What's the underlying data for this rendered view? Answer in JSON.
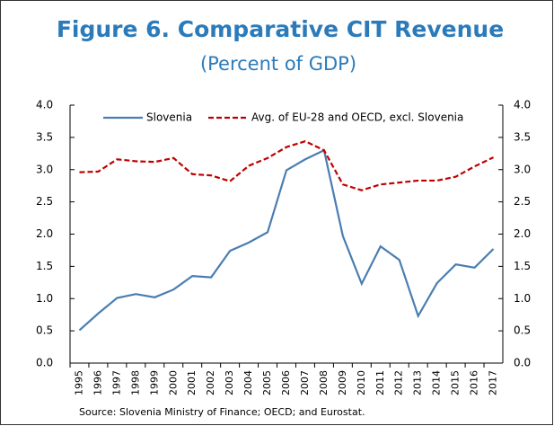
{
  "chart_data": {
    "type": "line",
    "title": "Figure 6. Comparative CIT Revenue",
    "subtitle": "(Percent of GDP)",
    "source": "Source: Slovenia Ministry of Finance; OECD; and Eurostat.",
    "categories": [
      "1995",
      "1996",
      "1997",
      "1998",
      "1999",
      "2000",
      "2001",
      "2002",
      "2003",
      "2004",
      "2005",
      "2006",
      "2007",
      "2008",
      "2009",
      "2010",
      "2011",
      "2012",
      "2013",
      "2014",
      "2015",
      "2016",
      "2017"
    ],
    "series": [
      {
        "name": "Slovenia",
        "color": "#4a7eb0",
        "dashed": false,
        "values": [
          0.51,
          0.77,
          1.01,
          1.07,
          1.02,
          1.14,
          1.35,
          1.33,
          1.74,
          1.87,
          2.03,
          2.99,
          3.16,
          3.3,
          1.97,
          1.23,
          1.81,
          1.6,
          0.73,
          1.24,
          1.53,
          1.48,
          1.77
        ]
      },
      {
        "name": "Avg. of EU-28 and OECD, excl. Slovenia",
        "color": "#c00000",
        "dashed": true,
        "values": [
          2.96,
          2.97,
          3.16,
          3.13,
          3.12,
          3.18,
          2.93,
          2.91,
          2.82,
          3.06,
          3.18,
          3.35,
          3.44,
          3.3,
          2.77,
          2.68,
          2.77,
          2.8,
          2.83,
          2.83,
          2.89,
          3.05,
          3.19
        ]
      }
    ],
    "ylim": [
      0,
      4
    ],
    "yticks": [
      {
        "value": 0,
        "label": "0.0"
      },
      {
        "value": 0.5,
        "label": "0.5"
      },
      {
        "value": 1,
        "label": "1.0"
      },
      {
        "value": 1.5,
        "label": "1.5"
      },
      {
        "value": 2,
        "label": "2.0"
      },
      {
        "value": 2.5,
        "label": "2.5"
      },
      {
        "value": 3,
        "label": "3.0"
      },
      {
        "value": 3.5,
        "label": "3.5"
      },
      {
        "value": 4,
        "label": "4.0"
      }
    ],
    "y2lim": [
      0,
      4
    ],
    "y2ticks": [
      {
        "value": 0,
        "label": "0.0"
      },
      {
        "value": 0.5,
        "label": "0.5"
      },
      {
        "value": 1,
        "label": "1.0"
      },
      {
        "value": 1.5,
        "label": "1.5"
      },
      {
        "value": 2,
        "label": "2.0"
      },
      {
        "value": 2.5,
        "label": "2.5"
      },
      {
        "value": 3,
        "label": "3.0"
      },
      {
        "value": 3.5,
        "label": "3.5"
      },
      {
        "value": 4,
        "label": "4.0"
      }
    ]
  }
}
